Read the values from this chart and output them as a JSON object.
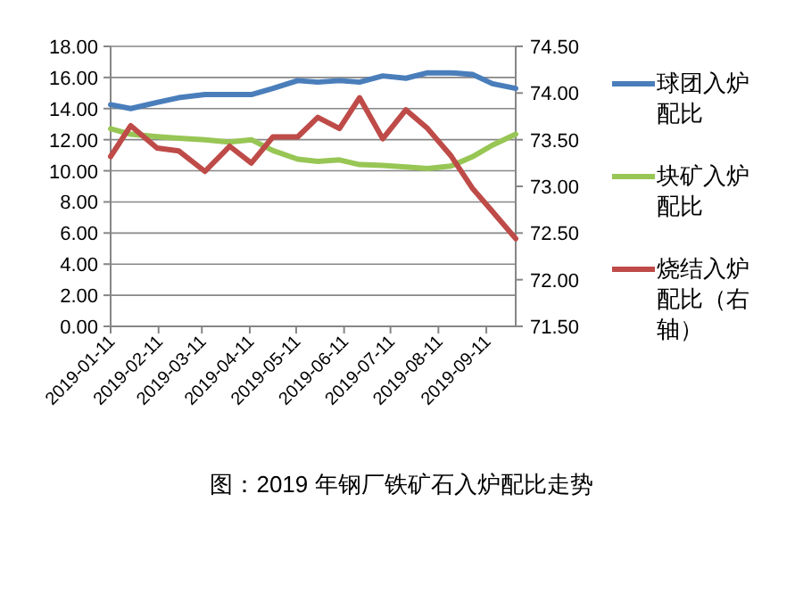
{
  "chart_data": {
    "type": "line",
    "title": "图：2019 年钢厂铁矿石入炉配比走势",
    "x": [
      "2019-01-11",
      "2019-01-24",
      "2019-02-10",
      "2019-02-24",
      "2019-03-13",
      "2019-03-29",
      "2019-04-12",
      "2019-04-26",
      "2019-05-12",
      "2019-05-25",
      "2019-06-08",
      "2019-06-21",
      "2019-07-06",
      "2019-07-21",
      "2019-08-04",
      "2019-08-19",
      "2019-09-02",
      "2019-09-15",
      "2019-09-30"
    ],
    "xlim": [
      "2019-01-11",
      "2019-09-30"
    ],
    "xticks": [
      {
        "value": "2019-01-11",
        "label": "2019-01-11"
      },
      {
        "value": "2019-02-11",
        "label": "2019-02-11"
      },
      {
        "value": "2019-03-11",
        "label": "2019-03-11"
      },
      {
        "value": "2019-04-11",
        "label": "2019-04-11"
      },
      {
        "value": "2019-05-11",
        "label": "2019-05-11"
      },
      {
        "value": "2019-06-11",
        "label": "2019-06-11"
      },
      {
        "value": "2019-07-11",
        "label": "2019-07-11"
      },
      {
        "value": "2019-08-11",
        "label": "2019-08-11"
      },
      {
        "value": "2019-09-11",
        "label": "2019-09-11"
      }
    ],
    "ylim": [
      0,
      18
    ],
    "yticks": [
      {
        "value": 0,
        "label": "0.00"
      },
      {
        "value": 2,
        "label": "2.00"
      },
      {
        "value": 4,
        "label": "4.00"
      },
      {
        "value": 6,
        "label": "6.00"
      },
      {
        "value": 8,
        "label": "8.00"
      },
      {
        "value": 10,
        "label": "10.00"
      },
      {
        "value": 12,
        "label": "12.00"
      },
      {
        "value": 14,
        "label": "14.00"
      },
      {
        "value": 16,
        "label": "16.00"
      },
      {
        "value": 18,
        "label": "18.00"
      }
    ],
    "y2lim": [
      71.5,
      74.5
    ],
    "y2ticks": [
      {
        "value": 71.5,
        "label": "71.50"
      },
      {
        "value": 72,
        "label": "72.00"
      },
      {
        "value": 72.5,
        "label": "72.50"
      },
      {
        "value": 73,
        "label": "73.00"
      },
      {
        "value": 73.5,
        "label": "73.50"
      },
      {
        "value": 74,
        "label": "74.00"
      },
      {
        "value": 74.5,
        "label": "74.50"
      }
    ],
    "grid": "y",
    "legend": "right",
    "marker": "none",
    "line_style": "solid",
    "series": [
      {
        "name": "球团入炉配比",
        "color": "#4a7ebb",
        "values": [
          14.25,
          14.0,
          14.4,
          14.7,
          14.9,
          14.9,
          14.9,
          15.3,
          15.8,
          15.7,
          15.8,
          15.7,
          16.1,
          15.95,
          16.3,
          16.3,
          16.2,
          15.6,
          15.3
        ]
      },
      {
        "name": "块矿入炉配比",
        "color": "#98c655",
        "values": [
          12.7,
          12.35,
          12.2,
          12.1,
          12.0,
          11.85,
          12.0,
          11.3,
          10.75,
          10.6,
          10.7,
          10.4,
          10.35,
          10.25,
          10.15,
          10.3,
          10.9,
          11.65,
          12.35
        ]
      },
      {
        "name": "烧结入炉配比（右轴）",
        "color": "#be4b48",
        "axis": "y2",
        "values": [
          73.32,
          73.65,
          73.41,
          73.38,
          73.16,
          73.43,
          73.25,
          73.53,
          73.53,
          73.74,
          73.62,
          73.95,
          73.51,
          73.82,
          73.62,
          73.33,
          72.98,
          72.73,
          72.44
        ]
      }
    ]
  }
}
